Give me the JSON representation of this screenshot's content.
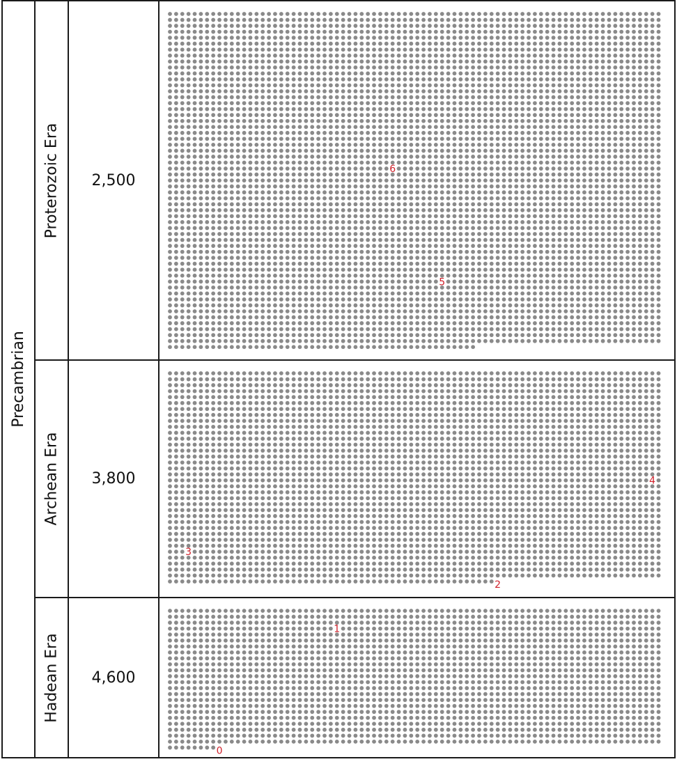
{
  "eon": {
    "label": "Precambrian"
  },
  "eras": [
    {
      "name": "Proterozoic Era",
      "start_mya": "2,500"
    },
    {
      "name": "Archean Era",
      "start_mya": "3,800"
    },
    {
      "name": "Hadean Era",
      "start_mya": "4,600"
    }
  ],
  "dot_color": "#8a8a8a",
  "marker_color": "#d0202a",
  "markers": [
    {
      "label": "6",
      "era": 0
    },
    {
      "label": "5",
      "era": 0
    },
    {
      "label": "4",
      "era": 1
    },
    {
      "label": "3",
      "era": 1
    },
    {
      "label": "2",
      "era": 1
    },
    {
      "label": "1",
      "era": 2
    },
    {
      "label": "0",
      "era": 2
    }
  ]
}
